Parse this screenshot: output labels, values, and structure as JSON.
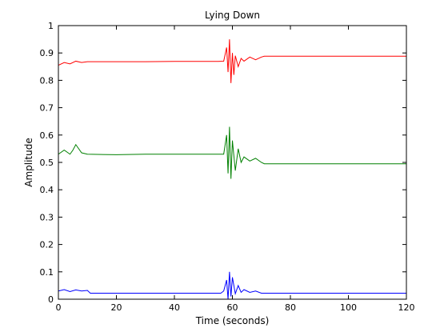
{
  "chart_data": {
    "type": "line",
    "title": "Lying Down",
    "xlabel": "Time (seconds)",
    "ylabel": "Amplitude",
    "xlim": [
      0,
      120
    ],
    "ylim": [
      0,
      1
    ],
    "xticks": [
      0,
      20,
      40,
      60,
      80,
      100,
      120
    ],
    "yticks": [
      0,
      0.1,
      0.2,
      0.3,
      0.4,
      0.5,
      0.6,
      0.7,
      0.8,
      0.9,
      1
    ],
    "grid": false,
    "legend": "none",
    "series": [
      {
        "color": "#ff0000",
        "x": [
          0,
          2,
          4,
          6,
          8,
          10,
          20,
          30,
          40,
          50,
          55,
          57,
          58,
          58.5,
          59,
          59.5,
          60,
          60.5,
          61,
          62,
          63,
          64,
          66,
          68,
          70,
          71,
          80,
          90,
          100,
          110,
          120
        ],
        "y": [
          0.855,
          0.865,
          0.86,
          0.87,
          0.865,
          0.868,
          0.868,
          0.868,
          0.869,
          0.869,
          0.869,
          0.87,
          0.92,
          0.83,
          0.95,
          0.79,
          0.9,
          0.82,
          0.89,
          0.85,
          0.88,
          0.87,
          0.885,
          0.875,
          0.885,
          0.888,
          0.888,
          0.888,
          0.888,
          0.888,
          0.888
        ]
      },
      {
        "color": "#008000",
        "x": [
          0,
          2,
          4,
          5,
          6,
          8,
          10,
          20,
          30,
          40,
          50,
          56,
          57,
          58,
          58.5,
          59,
          59.5,
          60,
          61,
          62,
          63,
          64,
          66,
          68,
          70,
          71,
          80,
          90,
          100,
          110,
          120
        ],
        "y": [
          0.53,
          0.545,
          0.53,
          0.545,
          0.565,
          0.535,
          0.53,
          0.528,
          0.53,
          0.53,
          0.53,
          0.53,
          0.53,
          0.6,
          0.46,
          0.63,
          0.44,
          0.58,
          0.47,
          0.55,
          0.5,
          0.52,
          0.505,
          0.515,
          0.5,
          0.495,
          0.495,
          0.495,
          0.495,
          0.495,
          0.495
        ]
      },
      {
        "color": "#0000ff",
        "x": [
          0,
          2,
          4,
          6,
          8,
          10,
          11,
          20,
          30,
          40,
          50,
          56,
          57,
          58,
          58.5,
          59,
          59.5,
          60,
          61,
          62,
          63,
          64,
          66,
          68,
          70,
          71,
          80,
          90,
          100,
          110,
          120
        ],
        "y": [
          0.03,
          0.035,
          0.028,
          0.034,
          0.03,
          0.032,
          0.022,
          0.022,
          0.022,
          0.022,
          0.022,
          0.022,
          0.03,
          0.07,
          0.0,
          0.1,
          0.01,
          0.08,
          0.02,
          0.05,
          0.025,
          0.035,
          0.025,
          0.03,
          0.022,
          0.022,
          0.022,
          0.022,
          0.022,
          0.022,
          0.022
        ]
      }
    ]
  }
}
